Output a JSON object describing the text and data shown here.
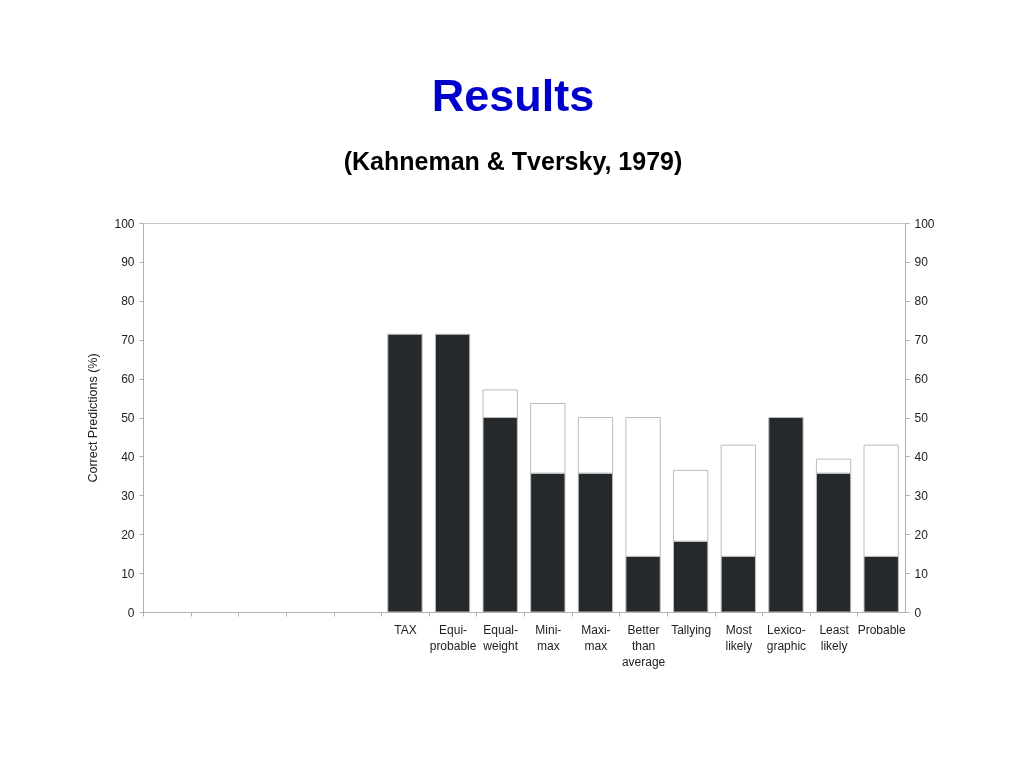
{
  "chart_data": {
    "type": "bar",
    "title": "Results",
    "subtitle": "(Kahneman & Tversky, 1979)",
    "ylabel": "Correct Predictions (%)",
    "categories": [
      null,
      null,
      null,
      null,
      null,
      "TAX",
      "Equi-probable",
      "Equal-weight",
      "Mini-max",
      "Maxi-max",
      "Better than average",
      "Tallying",
      "Most likely",
      "Lexico-graphic",
      "Least likely",
      "Probable"
    ],
    "stacked": true,
    "series": [
      {
        "color": "#25292c",
        "values": [
          null,
          null,
          null,
          null,
          null,
          71.4,
          71.4,
          50,
          35.7,
          35.7,
          14.3,
          18.2,
          14.3,
          50,
          35.7,
          14.3
        ]
      },
      {
        "color": "#ffffff",
        "values": [
          null,
          null,
          null,
          null,
          null,
          null,
          null,
          7.1,
          17.9,
          14.3,
          35.7,
          18.2,
          28.6,
          null,
          3.6,
          28.6
        ]
      }
    ],
    "ylim": [
      0,
      100
    ],
    "yticks": [
      0,
      10,
      20,
      30,
      40,
      50,
      60,
      70,
      80,
      90,
      100
    ],
    "y2lim": [
      0,
      100
    ],
    "y2ticks": [
      0,
      10,
      20,
      30,
      40,
      50,
      60,
      70,
      80,
      90,
      100
    ]
  }
}
